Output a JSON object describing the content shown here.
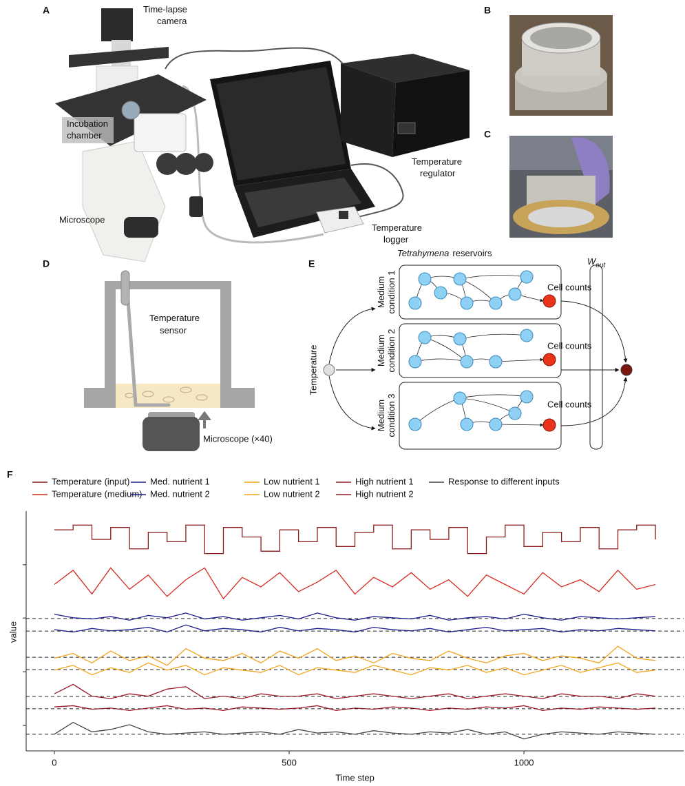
{
  "panel_a": {
    "label": "A",
    "camera": [
      "Time-lapse",
      "camera"
    ],
    "chamber": [
      "Incubation",
      "chamber"
    ],
    "microscope": "Microscope",
    "regulator": [
      "Temperature",
      "regulator"
    ],
    "logger": [
      "Temperature",
      "logger"
    ]
  },
  "panel_b": {
    "label": "B"
  },
  "panel_c": {
    "label": "C"
  },
  "panel_d": {
    "label": "D",
    "sensor": [
      "Temperature",
      "sensor"
    ],
    "microscope": "Microscope (×40)"
  },
  "panel_e": {
    "label": "E",
    "title_italic": "Tetrahymena",
    "title_rest": "reservoirs",
    "w": "W",
    "w_sub": "out",
    "input": "Temperature",
    "conditions": [
      [
        "Medium",
        "condition 1"
      ],
      [
        "Medium",
        "condition 2"
      ],
      [
        "Medium",
        "condition 3"
      ]
    ],
    "cell_counts": [
      "Cell counts",
      "Cell counts",
      "Cell counts"
    ]
  },
  "panel_f": {
    "label": "F"
  },
  "chart_data": {
    "type": "line",
    "xlabel": "Time step",
    "ylabel": "value",
    "xlim": [
      -60,
      1340
    ],
    "xticks": [
      0,
      500,
      1000
    ],
    "ylim": [
      0,
      10
    ],
    "yticks": [
      1.07,
      3.33,
      5.59,
      7.83
    ],
    "baselines": [
      5.57,
      5.04,
      3.94,
      3.42,
      2.29,
      1.77,
      0.7
    ],
    "x": [
      0,
      40,
      80,
      120,
      160,
      200,
      240,
      280,
      320,
      360,
      400,
      440,
      480,
      520,
      560,
      600,
      640,
      680,
      720,
      760,
      800,
      840,
      880,
      920,
      960,
      1000,
      1040,
      1080,
      1120,
      1160,
      1200,
      1240,
      1280
    ],
    "series": [
      {
        "name": "Temperature (input)",
        "color": "#8b1a1a",
        "step": true,
        "values": [
          9.3,
          9.5,
          8.9,
          9.4,
          8.5,
          9.2,
          8.8,
          9.5,
          8.3,
          9.4,
          9.0,
          8.4,
          9.3,
          8.8,
          9.4,
          8.6,
          9.2,
          9.5,
          8.5,
          9.3,
          8.9,
          9.4,
          8.3,
          9.0,
          9.5,
          8.6,
          9.2,
          8.8,
          9.4,
          8.5,
          9.3,
          9.5,
          8.9
        ]
      },
      {
        "name": "Temperature (medium)",
        "color": "#d42a20",
        "values": [
          7.0,
          7.6,
          6.6,
          7.7,
          6.8,
          7.4,
          6.5,
          7.2,
          7.7,
          6.4,
          7.3,
          6.9,
          7.5,
          6.7,
          7.1,
          7.6,
          6.6,
          7.3,
          6.9,
          7.5,
          6.8,
          7.2,
          6.5,
          7.4,
          7.0,
          6.6,
          7.5,
          6.9,
          7.2,
          6.7,
          7.6,
          6.8,
          7.0
        ]
      },
      {
        "name": "Med. nutrient 1",
        "color": "#1c1c8c",
        "values": [
          5.75,
          5.6,
          5.55,
          5.65,
          5.5,
          5.7,
          5.6,
          5.8,
          5.55,
          5.65,
          5.5,
          5.6,
          5.7,
          5.55,
          5.8,
          5.6,
          5.5,
          5.65,
          5.6,
          5.55,
          5.7,
          5.5,
          5.6,
          5.65,
          5.55,
          5.75,
          5.6,
          5.5,
          5.65,
          5.6,
          5.55,
          5.6,
          5.65
        ]
      },
      {
        "name": "Med. nutrient 2",
        "color": "#1c1c8c",
        "values": [
          5.1,
          5.0,
          5.15,
          5.05,
          5.1,
          5.2,
          5.0,
          5.3,
          5.05,
          5.15,
          5.1,
          5.0,
          5.2,
          5.05,
          5.15,
          5.1,
          5.0,
          5.2,
          5.1,
          5.05,
          5.15,
          5.0,
          5.1,
          5.2,
          5.05,
          5.1,
          5.15,
          5.0,
          5.1,
          5.05,
          5.15,
          5.1,
          5.05
        ]
      },
      {
        "name": "Low nutrient 1",
        "color": "#f2a41c",
        "values": [
          3.9,
          4.1,
          3.7,
          4.2,
          3.8,
          4.0,
          3.6,
          4.3,
          3.9,
          3.8,
          4.1,
          3.7,
          4.2,
          3.9,
          4.3,
          3.8,
          4.0,
          3.7,
          4.1,
          3.9,
          3.8,
          4.2,
          3.9,
          3.7,
          4.0,
          4.1,
          3.8,
          4.0,
          3.9,
          3.7,
          4.4,
          3.9,
          3.8
        ]
      },
      {
        "name": "Low nutrient 2",
        "color": "#f2a41c",
        "values": [
          3.4,
          3.6,
          3.2,
          3.5,
          3.3,
          3.7,
          3.4,
          3.6,
          3.2,
          3.5,
          3.4,
          3.3,
          3.6,
          3.2,
          3.5,
          3.4,
          3.3,
          3.6,
          3.4,
          3.2,
          3.5,
          3.4,
          3.6,
          3.3,
          3.5,
          3.2,
          3.4,
          3.6,
          3.3,
          3.5,
          3.7,
          3.3,
          3.4
        ]
      },
      {
        "name": "High nutrient 1",
        "color": "#9b1b2a",
        "values": [
          2.4,
          2.8,
          2.3,
          2.2,
          2.4,
          2.3,
          2.6,
          2.7,
          2.2,
          2.3,
          2.2,
          2.4,
          2.3,
          2.3,
          2.4,
          2.2,
          2.3,
          2.4,
          2.3,
          2.2,
          2.3,
          2.4,
          2.2,
          2.3,
          2.4,
          2.3,
          2.2,
          2.4,
          2.3,
          2.3,
          2.2,
          2.4,
          2.3
        ]
      },
      {
        "name": "High nutrient 2",
        "color": "#9b1b2a",
        "values": [
          1.85,
          1.9,
          1.75,
          1.8,
          1.7,
          1.8,
          1.9,
          1.75,
          1.8,
          1.7,
          1.85,
          1.8,
          1.75,
          1.8,
          1.9,
          1.7,
          1.8,
          1.75,
          1.85,
          1.8,
          1.7,
          1.8,
          1.75,
          1.85,
          1.8,
          1.9,
          1.7,
          1.8,
          1.75,
          1.85,
          1.8,
          1.75,
          1.8
        ]
      },
      {
        "name": "Response to different inputs",
        "color": "#444444",
        "values": [
          0.7,
          1.2,
          0.8,
          0.9,
          1.1,
          0.8,
          0.7,
          0.75,
          0.8,
          0.7,
          0.75,
          0.8,
          0.7,
          0.9,
          0.75,
          0.8,
          0.7,
          0.85,
          0.75,
          0.7,
          0.8,
          0.75,
          0.9,
          0.7,
          0.8,
          0.5,
          0.7,
          0.8,
          0.75,
          0.7,
          0.8,
          0.75,
          0.7
        ]
      }
    ]
  }
}
